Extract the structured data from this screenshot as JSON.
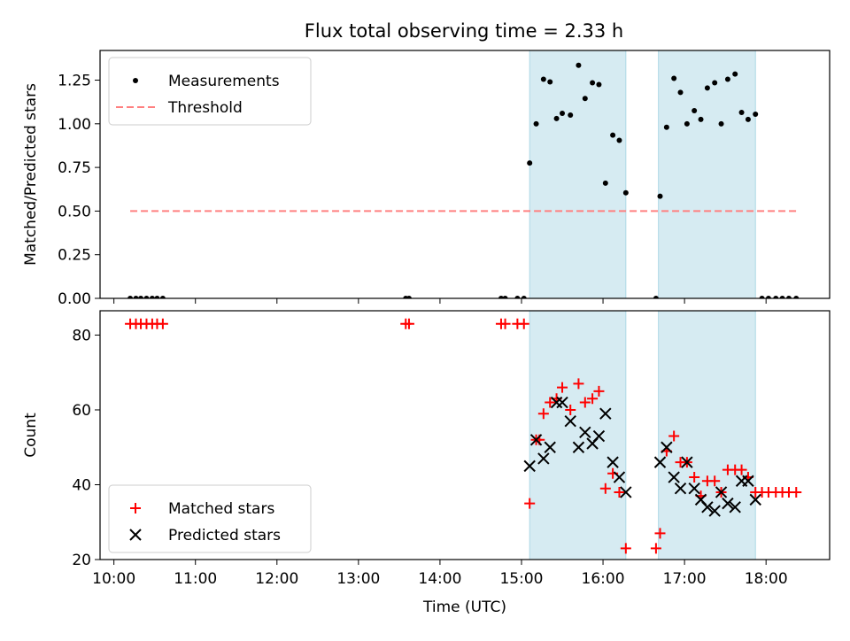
{
  "chart_data": [
    {
      "type": "scatter",
      "title": "Flux total observing time = 2.33 h",
      "xlabel": "",
      "ylabel": "Matched/Predicted stars",
      "xlim": [
        9.83,
        18.78
      ],
      "ylim": [
        0,
        1.42
      ],
      "yticks": [
        0,
        0.25,
        0.5,
        0.75,
        1.0,
        1.25
      ],
      "ytick_labels": [
        "0.00",
        "0.25",
        "0.50",
        "0.75",
        "1.00",
        "1.25"
      ],
      "shaded_intervals": [
        [
          15.1,
          16.28
        ],
        [
          16.68,
          17.87
        ]
      ],
      "threshold": {
        "name": "Threshold",
        "value": 0.5,
        "x_start": 10.2,
        "x_end": 18.37,
        "color": "#ff8080"
      },
      "legend": {
        "placement": "upper-left",
        "entries": [
          "Measurements",
          "Threshold"
        ]
      },
      "series": [
        {
          "name": "Measurements",
          "marker": "dot",
          "color": "#000000",
          "x": [
            10.2,
            10.27,
            10.33,
            10.4,
            10.47,
            10.53,
            10.6,
            13.58,
            13.62,
            14.75,
            14.8,
            14.95,
            15.03,
            15.1,
            15.18,
            15.27,
            15.35,
            15.43,
            15.5,
            15.6,
            15.7,
            15.78,
            15.87,
            15.95,
            16.03,
            16.12,
            16.2,
            16.28,
            16.65,
            16.7,
            16.78,
            16.87,
            16.95,
            17.03,
            17.12,
            17.2,
            17.28,
            17.37,
            17.45,
            17.53,
            17.62,
            17.7,
            17.78,
            17.87,
            17.95,
            18.03,
            18.12,
            18.2,
            18.28,
            18.37
          ],
          "y": [
            0,
            0,
            0,
            0,
            0,
            0,
            0,
            0,
            0,
            0,
            0,
            0,
            0,
            0.775,
            1.0,
            1.255,
            1.24,
            1.03,
            1.06,
            1.05,
            1.335,
            1.145,
            1.235,
            1.225,
            0.66,
            0.935,
            0.905,
            0.605,
            0,
            0.585,
            0.98,
            1.26,
            1.18,
            1.0,
            1.075,
            1.025,
            1.205,
            1.235,
            1.0,
            1.255,
            1.285,
            1.065,
            1.025,
            1.055,
            0,
            0,
            0,
            0,
            0,
            0
          ]
        }
      ]
    },
    {
      "type": "scatter",
      "title": "",
      "xlabel": "Time (UTC)",
      "ylabel": "Count",
      "xlim": [
        9.83,
        18.78
      ],
      "ylim": [
        20,
        86.5
      ],
      "yticks": [
        20,
        40,
        60,
        80
      ],
      "ytick_labels": [
        "20",
        "40",
        "60",
        "80"
      ],
      "xticks": [
        10,
        11,
        12,
        13,
        14,
        15,
        16,
        17,
        18
      ],
      "xtick_labels": [
        "10:00",
        "11:00",
        "12:00",
        "13:00",
        "14:00",
        "15:00",
        "16:00",
        "17:00",
        "18:00"
      ],
      "shaded_intervals": [
        [
          15.1,
          16.28
        ],
        [
          16.68,
          17.87
        ]
      ],
      "legend": {
        "placement": "lower-left",
        "entries": [
          "Matched stars",
          "Predicted stars"
        ]
      },
      "series": [
        {
          "name": "Matched stars",
          "marker": "plus",
          "color": "#ff0000",
          "x": [
            10.2,
            10.27,
            10.33,
            10.4,
            10.47,
            10.53,
            10.6,
            13.58,
            13.62,
            14.75,
            14.8,
            14.95,
            15.03,
            15.1,
            15.18,
            15.22,
            15.27,
            15.35,
            15.43,
            15.5,
            15.6,
            15.7,
            15.78,
            15.87,
            15.95,
            16.03,
            16.12,
            16.2,
            16.28,
            16.65,
            16.7,
            16.78,
            16.87,
            16.95,
            17.03,
            17.12,
            17.2,
            17.28,
            17.37,
            17.45,
            17.53,
            17.62,
            17.7,
            17.78,
            17.87,
            17.95,
            18.03,
            18.12,
            18.2,
            18.28,
            18.37
          ],
          "y": [
            83,
            83,
            83,
            83,
            83,
            83,
            83,
            83,
            83,
            83,
            83,
            83,
            83,
            35,
            52,
            52,
            59,
            62,
            63,
            66,
            60,
            67,
            62,
            63,
            65,
            39,
            43,
            38,
            23,
            23,
            27,
            49,
            53,
            46,
            46,
            42,
            37,
            41,
            41,
            38,
            44,
            44,
            44,
            42,
            38,
            38,
            38,
            38,
            38,
            38,
            38
          ]
        },
        {
          "name": "Predicted stars",
          "marker": "x",
          "color": "#000000",
          "x": [
            15.1,
            15.18,
            15.27,
            15.35,
            15.43,
            15.5,
            15.6,
            15.7,
            15.78,
            15.87,
            15.95,
            16.03,
            16.12,
            16.2,
            16.28,
            16.7,
            16.78,
            16.87,
            16.95,
            17.03,
            17.12,
            17.2,
            17.28,
            17.37,
            17.45,
            17.53,
            17.62,
            17.7,
            17.78,
            17.87
          ],
          "y": [
            45,
            52,
            47,
            50,
            62,
            62,
            57,
            50,
            54,
            51,
            53,
            59,
            46,
            42,
            38,
            46,
            50,
            42,
            39,
            46,
            39,
            36,
            34,
            33,
            38,
            35,
            34,
            41,
            41,
            36
          ]
        }
      ]
    }
  ]
}
